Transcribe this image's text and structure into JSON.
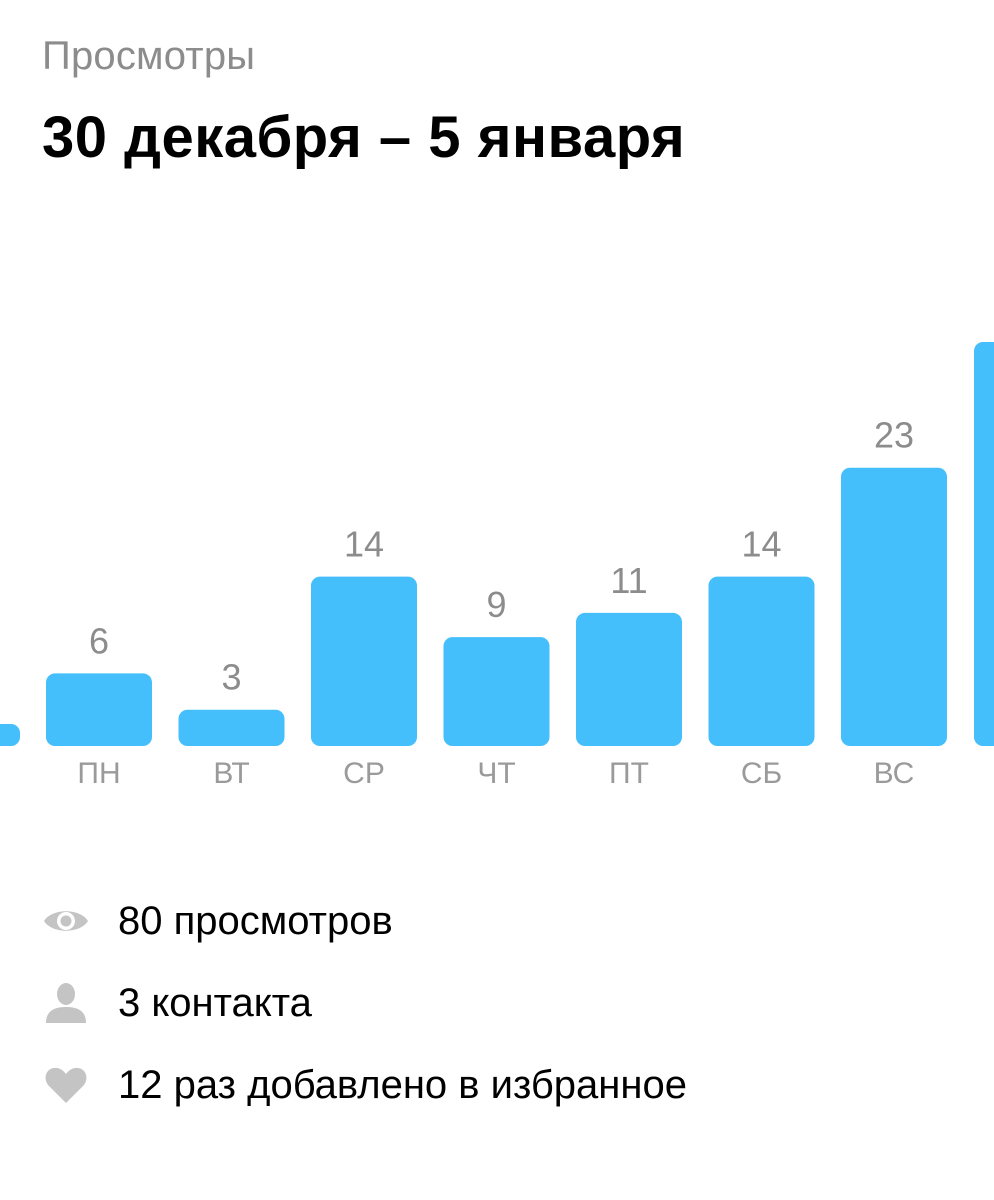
{
  "header": {
    "subtitle": "Просмотры",
    "title": "30 декабря – 5 января"
  },
  "colors": {
    "bar": "#45BFFB",
    "muted_text": "#8C8C8C",
    "icon": "#C4C4C4"
  },
  "chart_data": {
    "type": "bar",
    "categories": [
      "ПН",
      "ВТ",
      "СР",
      "ЧТ",
      "ПТ",
      "СБ",
      "ВС"
    ],
    "values": [
      6,
      3,
      14,
      9,
      11,
      14,
      23
    ],
    "title": "",
    "xlabel": "",
    "ylabel": "",
    "grid": false,
    "legend": "none"
  },
  "stats": [
    {
      "icon": "eye-icon",
      "text": "80 просмотров"
    },
    {
      "icon": "person-icon",
      "text": "3 контакта"
    },
    {
      "icon": "heart-icon",
      "text": "12 раз добавлено в избранное"
    }
  ]
}
